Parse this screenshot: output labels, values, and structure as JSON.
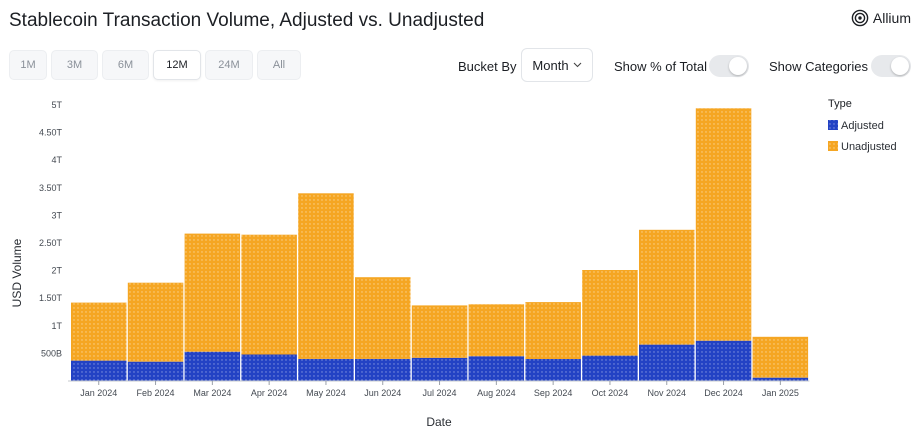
{
  "header": {
    "title": "Stablecoin Transaction Volume, Adjusted vs. Unadjusted",
    "brand": "Allium",
    "brand_icon": "allium-logo-icon"
  },
  "controls": {
    "ranges": [
      "1M",
      "3M",
      "6M",
      "12M",
      "24M",
      "All"
    ],
    "active_range": "12M",
    "bucket_label": "Bucket By",
    "bucket_value": "Month",
    "show_pct_label": "Show % of Total",
    "show_pct_on": false,
    "show_categories_label": "Show Categories",
    "show_categories_on": false
  },
  "chart_data": {
    "type": "bar",
    "stacked": true,
    "categories": [
      "Jan 2024",
      "Feb 2024",
      "Mar 2024",
      "Apr 2024",
      "May 2024",
      "Jun 2024",
      "Jul 2024",
      "Aug 2024",
      "Sep 2024",
      "Oct 2024",
      "Nov 2024",
      "Dec 2024",
      "Jan 2025"
    ],
    "series": [
      {
        "name": "Adjusted",
        "color": "#2342c4",
        "values": [
          0.37,
          0.35,
          0.53,
          0.48,
          0.4,
          0.4,
          0.42,
          0.45,
          0.4,
          0.46,
          0.66,
          0.73,
          0.06
        ]
      },
      {
        "name": "Unadjusted",
        "color": "#f5a623",
        "values": [
          1.05,
          1.43,
          2.14,
          2.17,
          3.0,
          1.48,
          0.95,
          0.94,
          1.03,
          1.55,
          2.08,
          4.21,
          0.74
        ]
      }
    ],
    "y_ticks": [
      {
        "value": 0.5,
        "label": "500B"
      },
      {
        "value": 1.0,
        "label": "1T"
      },
      {
        "value": 1.5,
        "label": "1.50T"
      },
      {
        "value": 2.0,
        "label": "2T"
      },
      {
        "value": 2.5,
        "label": "2.50T"
      },
      {
        "value": 3.0,
        "label": "3T"
      },
      {
        "value": 3.5,
        "label": "3.50T"
      },
      {
        "value": 4.0,
        "label": "4T"
      },
      {
        "value": 4.5,
        "label": "4.50T"
      },
      {
        "value": 5.0,
        "label": "5T"
      }
    ],
    "ylim": [
      0,
      5
    ],
    "xlabel": "Date",
    "ylabel": "USD Volume",
    "legend_title": "Type",
    "legend_position": "top-right",
    "grid": false
  }
}
